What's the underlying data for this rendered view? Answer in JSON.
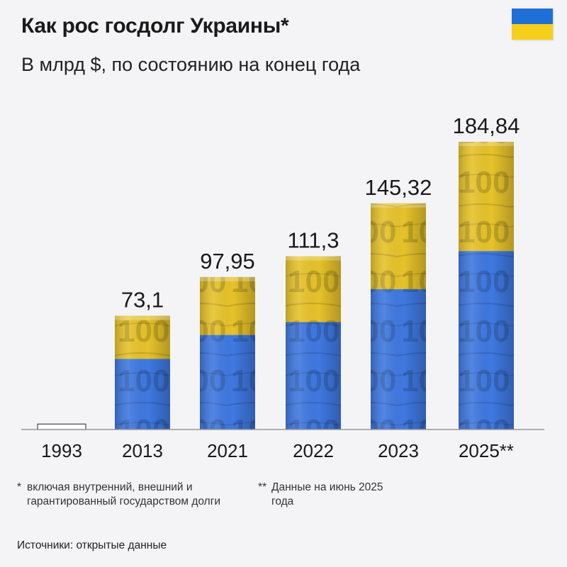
{
  "header": {
    "title": "Как рос госдолг Украины*",
    "subtitle": "В млрд $, по состоянию на конец года"
  },
  "flag": {
    "top_color": "#1f6fd6",
    "bottom_color": "#f6cf1a"
  },
  "chart_data": {
    "type": "bar",
    "title": "Как рос госдолг Украины*",
    "subtitle": "В млрд $, по состоянию на конец года",
    "categories": [
      "1993",
      "2013",
      "2021",
      "2022",
      "2023",
      "2025**"
    ],
    "values": [
      3.5,
      73.1,
      97.95,
      111.3,
      145.32,
      184.84
    ],
    "value_labels": [
      "",
      "73,1",
      "97,95",
      "111,3",
      "145,32",
      "184,84"
    ],
    "ylim": [
      0,
      184.84
    ],
    "grid": false,
    "colors": {
      "yellow": "#e6c22a",
      "blue": "#3f78e0",
      "baseline": "#9a9a9a"
    }
  },
  "footnotes": {
    "note1_marker": "*",
    "note1_text": "включая внутренний, внешний и гарантированный государством долги",
    "note2_marker": "**",
    "note2_text": "Данные на июнь 2025 года",
    "source": "Источники: открытые данные"
  }
}
